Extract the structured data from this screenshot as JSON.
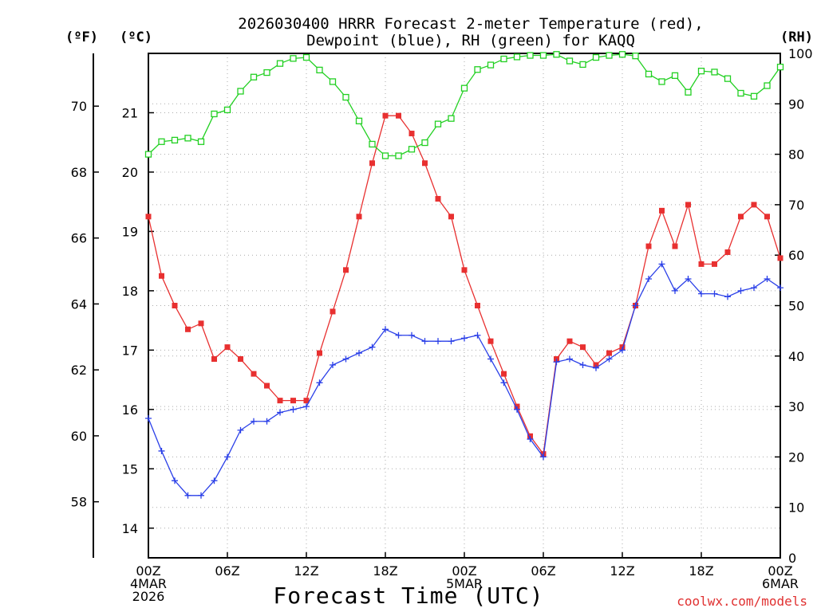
{
  "chart_data": {
    "type": "line",
    "title_line1": "2026030400 HRRR Forecast 2-meter Temperature (red),",
    "title_line2": "Dewpoint (blue), RH (green) for KAQQ",
    "xlabel": "Forecast Time (UTC)",
    "unit_f": "(ºF)",
    "unit_c": "(ºC)",
    "unit_rh": "(RH)",
    "credit": "coolwx.com/models",
    "x_range_hours": [
      0,
      48
    ],
    "celsius_range": [
      13.5,
      22.0
    ],
    "rh_range": [
      0,
      100
    ],
    "celsius_ticks": [
      14,
      15,
      16,
      17,
      18,
      19,
      20,
      21
    ],
    "fahrenheit_ticks": [
      58,
      60,
      62,
      64,
      66,
      68,
      70
    ],
    "rh_ticks": [
      0,
      10,
      20,
      30,
      40,
      50,
      60,
      70,
      80,
      90,
      100
    ],
    "x_ticks": [
      {
        "hour": 0,
        "lines": [
          "00Z",
          "4MAR",
          "2026"
        ]
      },
      {
        "hour": 6,
        "lines": [
          "06Z"
        ]
      },
      {
        "hour": 12,
        "lines": [
          "12Z"
        ]
      },
      {
        "hour": 18,
        "lines": [
          "18Z"
        ]
      },
      {
        "hour": 24,
        "lines": [
          "00Z",
          "5MAR"
        ]
      },
      {
        "hour": 30,
        "lines": [
          "06Z"
        ]
      },
      {
        "hour": 36,
        "lines": [
          "12Z"
        ]
      },
      {
        "hour": 42,
        "lines": [
          "18Z"
        ]
      },
      {
        "hour": 48,
        "lines": [
          "00Z",
          "6MAR"
        ]
      }
    ],
    "grid": "dotted",
    "series": [
      {
        "name": "Temperature",
        "unit": "C",
        "color": "#e83030",
        "marker": "filled-square",
        "values": [
          19.25,
          18.25,
          17.75,
          17.35,
          17.45,
          16.85,
          17.05,
          16.85,
          16.6,
          16.4,
          16.15,
          16.15,
          16.15,
          16.95,
          17.65,
          18.35,
          19.25,
          20.15,
          20.95,
          20.95,
          20.65,
          20.15,
          19.55,
          19.25,
          18.35,
          17.75,
          17.15,
          16.6,
          16.05,
          15.55,
          15.25,
          16.85,
          17.15,
          17.05,
          16.75,
          16.95,
          17.05,
          17.75,
          18.75,
          19.35,
          18.75,
          19.45,
          18.45,
          18.45,
          18.65,
          19.25,
          19.45,
          19.25,
          18.55
        ]
      },
      {
        "name": "Dewpoint",
        "unit": "C",
        "color": "#2a3fe8",
        "marker": "plus",
        "values": [
          15.85,
          15.3,
          14.8,
          14.55,
          14.55,
          14.8,
          15.2,
          15.65,
          15.8,
          15.8,
          15.95,
          16.0,
          16.05,
          16.45,
          16.75,
          16.85,
          16.95,
          17.05,
          17.35,
          17.25,
          17.25,
          17.15,
          17.15,
          17.15,
          17.2,
          17.25,
          16.85,
          16.45,
          16.0,
          15.5,
          15.2,
          16.8,
          16.85,
          16.75,
          16.7,
          16.85,
          17.0,
          17.75,
          18.2,
          18.45,
          18.0,
          18.2,
          17.95,
          17.95,
          17.9,
          18.0,
          18.05,
          18.2,
          18.05
        ]
      },
      {
        "name": "RH",
        "unit": "%",
        "color": "#22d022",
        "marker": "open-square",
        "values": [
          80.0,
          82.5,
          82.8,
          83.2,
          82.5,
          88.0,
          88.8,
          92.5,
          95.3,
          96.2,
          98.0,
          99.0,
          99.2,
          96.7,
          94.4,
          91.3,
          86.6,
          82.0,
          79.7,
          79.7,
          81.0,
          82.3,
          86.0,
          87.1,
          93.1,
          96.8,
          97.7,
          98.9,
          99.3,
          99.6,
          99.6,
          99.8,
          98.5,
          97.8,
          99.2,
          99.6,
          99.8,
          99.5,
          95.9,
          94.4,
          95.6,
          92.3,
          96.5,
          96.3,
          95.0,
          92.1,
          91.5,
          93.6,
          97.3
        ]
      }
    ]
  }
}
